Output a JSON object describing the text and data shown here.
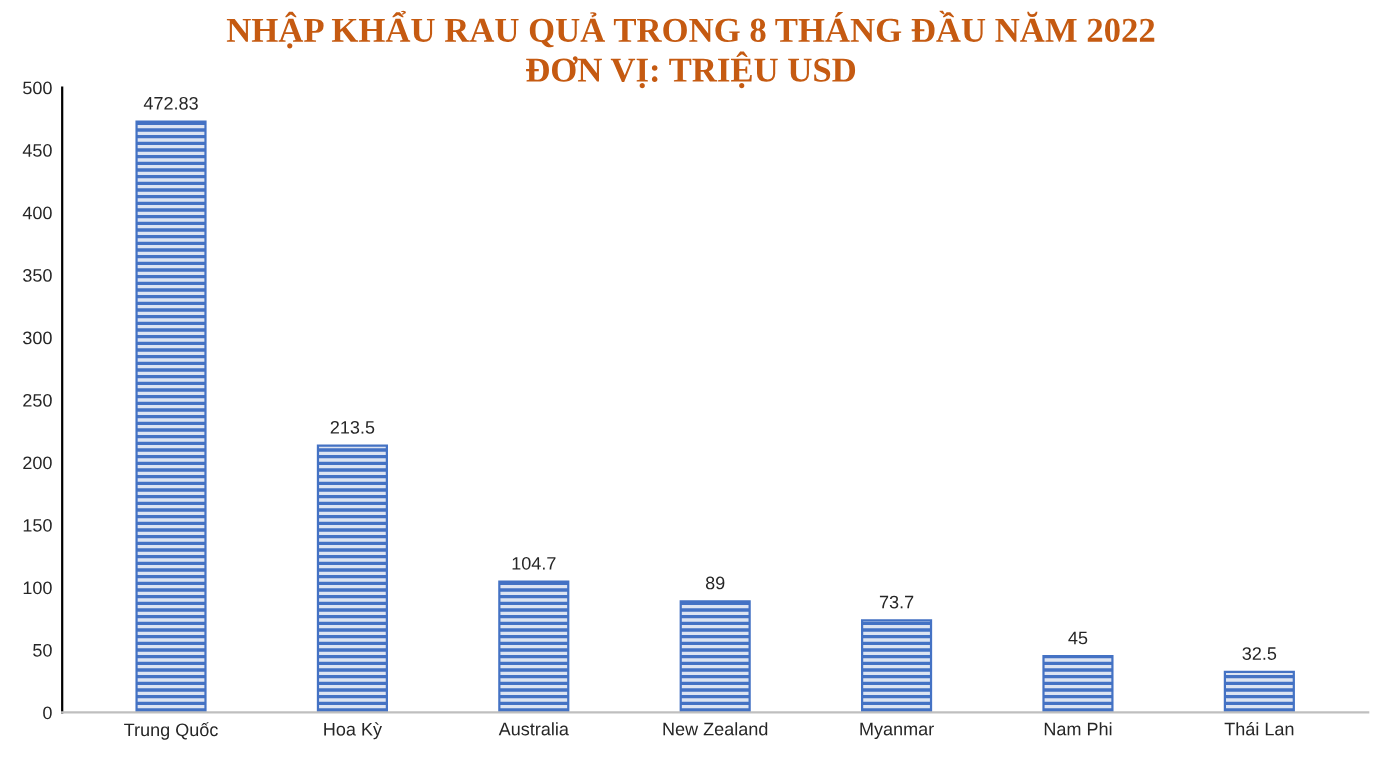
{
  "chart_data": {
    "type": "bar",
    "title": "NHẬP KHẨU RAU QUẢ TRONG 8 THÁNG ĐẦU NĂM 2022\nĐƠN VỊ: TRIỆU USD",
    "categories": [
      "Trung Quốc",
      "Hoa Kỳ",
      "Australia",
      "New Zealand",
      "Myanmar",
      "Nam Phi",
      "Thái Lan"
    ],
    "values": [
      472.83,
      213.5,
      104.7,
      89,
      73.7,
      45,
      32.5
    ],
    "color": "#4472c4",
    "ylim": [
      0,
      500
    ],
    "yticks": [
      0,
      50,
      100,
      150,
      200,
      250,
      300,
      350,
      400,
      450,
      500
    ],
    "data_labels": true,
    "grid": false
  }
}
